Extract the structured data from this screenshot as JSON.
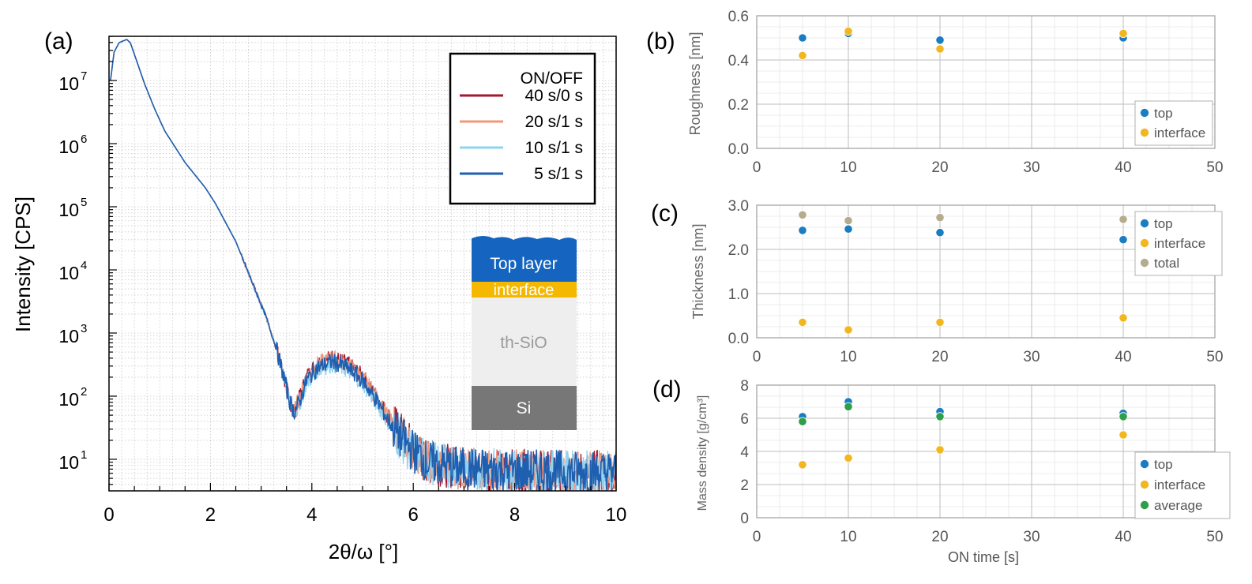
{
  "chart_data": [
    {
      "panel": "(a)",
      "type": "line",
      "xlabel": "2θ/ω [°]",
      "ylabel": "Intensity [CPS]",
      "xlim": [
        0,
        10
      ],
      "ylim_log10": [
        0.5,
        7.7
      ],
      "y_scale": "log",
      "x_ticks": [
        0,
        2,
        4,
        6,
        8,
        10
      ],
      "y_tick_labels": [
        {
          "base": "10",
          "exp": "7",
          "value": 10000000
        },
        {
          "base": "10",
          "exp": "6",
          "value": 1000000
        },
        {
          "base": "10",
          "exp": "5",
          "value": 100000
        },
        {
          "base": "10",
          "exp": "4",
          "value": 10000
        },
        {
          "base": "10",
          "exp": "3",
          "value": 1000
        },
        {
          "base": "10",
          "exp": "2",
          "value": 100
        },
        {
          "base": "10",
          "exp": "1",
          "value": 10
        }
      ],
      "legend_title": "ON/OFF",
      "legend_position": "top-right",
      "grid": true,
      "series": [
        {
          "name": "40 s/0 s",
          "color": "#a3182f",
          "peak_scale": 1.2
        },
        {
          "name": "20 s/1 s",
          "color": "#f0987a",
          "peak_scale": 1.15
        },
        {
          "name": "10 s/1 s",
          "color": "#8fd3f0",
          "peak_scale": 0.9
        },
        {
          "name": " 5 s/1 s",
          "color": "#1f5fb0",
          "peak_scale": 1.0
        }
      ],
      "curve_points": [
        [
          0.03,
          7.0
        ],
        [
          0.1,
          7.45
        ],
        [
          0.2,
          7.6
        ],
        [
          0.35,
          7.65
        ],
        [
          0.42,
          7.6
        ],
        [
          0.55,
          7.3
        ],
        [
          0.7,
          6.95
        ],
        [
          0.9,
          6.55
        ],
        [
          1.1,
          6.2
        ],
        [
          1.3,
          5.95
        ],
        [
          1.5,
          5.7
        ],
        [
          1.7,
          5.5
        ],
        [
          1.9,
          5.3
        ],
        [
          2.1,
          5.05
        ],
        [
          2.3,
          4.75
        ],
        [
          2.5,
          4.45
        ],
        [
          2.7,
          4.05
        ],
        [
          2.9,
          3.65
        ],
        [
          3.1,
          3.25
        ],
        [
          3.3,
          2.75
        ],
        [
          3.45,
          2.3
        ],
        [
          3.55,
          1.95
        ],
        [
          3.65,
          1.75
        ],
        [
          3.75,
          1.9
        ],
        [
          3.9,
          2.25
        ],
        [
          4.1,
          2.45
        ],
        [
          4.4,
          2.55
        ],
        [
          4.7,
          2.45
        ],
        [
          5.0,
          2.25
        ],
        [
          5.3,
          1.9
        ],
        [
          5.6,
          1.5
        ],
        [
          5.9,
          1.2
        ],
        [
          6.3,
          0.95
        ],
        [
          7.0,
          0.85
        ],
        [
          8.0,
          0.82
        ],
        [
          9.0,
          0.8
        ],
        [
          10.0,
          0.8
        ]
      ],
      "inset": {
        "layers": [
          {
            "label": "Top layer",
            "color": "#1565c0",
            "text_color": "#ffffff"
          },
          {
            "label": "interface",
            "color": "#f5b800",
            "text_color": "#ffffff"
          },
          {
            "label": "th-SiO",
            "color": "#eeeeee",
            "text_color": "#9a9a9a"
          },
          {
            "label": "Si",
            "color": "#777777",
            "text_color": "#ffffff"
          }
        ]
      }
    },
    {
      "panel": "(b)",
      "type": "scatter",
      "ylabel": "Roughness [nm]",
      "xlim": [
        0,
        50
      ],
      "ylim": [
        0,
        0.6
      ],
      "x_ticks": [
        0,
        10,
        20,
        30,
        40,
        50
      ],
      "x_tick_labels": [
        "0",
        "10",
        "20",
        "30",
        "40",
        "50"
      ],
      "y_ticks": [
        0,
        0.2,
        0.4,
        0.6
      ],
      "y_tick_labels": [
        "0.0",
        "0.2",
        "0.4",
        "0.6"
      ],
      "legend_position": "bottom-right",
      "grid": true,
      "series": [
        {
          "name": "top",
          "color": "#1a7dc2",
          "x": [
            5,
            10,
            20,
            40
          ],
          "y": [
            0.5,
            0.52,
            0.49,
            0.5
          ]
        },
        {
          "name": "interface",
          "color": "#f2b71f",
          "x": [
            5,
            10,
            20,
            40
          ],
          "y": [
            0.42,
            0.53,
            0.45,
            0.52
          ]
        }
      ]
    },
    {
      "panel": "(c)",
      "type": "scatter",
      "ylabel": "Thickness [nm]",
      "xlim": [
        0,
        50
      ],
      "ylim": [
        0,
        3
      ],
      "x_ticks": [
        0,
        10,
        20,
        30,
        40,
        50
      ],
      "x_tick_labels": [
        "0",
        "10",
        "20",
        "30",
        "40",
        "50"
      ],
      "y_ticks": [
        0,
        1,
        2,
        3
      ],
      "y_tick_labels": [
        "0.0",
        "1.0",
        "2.0",
        "3.0"
      ],
      "legend_position": "top-right",
      "grid": true,
      "series": [
        {
          "name": "top",
          "color": "#1a7dc2",
          "x": [
            5,
            10,
            20,
            40
          ],
          "y": [
            2.43,
            2.46,
            2.38,
            2.22
          ]
        },
        {
          "name": "interface",
          "color": "#f2b71f",
          "x": [
            5,
            10,
            20,
            40
          ],
          "y": [
            0.35,
            0.18,
            0.35,
            0.45
          ]
        },
        {
          "name": "total",
          "color": "#b5ac8e",
          "x": [
            5,
            10,
            20,
            40
          ],
          "y": [
            2.78,
            2.65,
            2.72,
            2.68
          ]
        }
      ]
    },
    {
      "panel": "(d)",
      "type": "scatter",
      "ylabel": "Mass density [g/cm³]",
      "xlabel": "ON time [s]",
      "xlim": [
        0,
        50
      ],
      "ylim": [
        0,
        8
      ],
      "x_ticks": [
        0,
        10,
        20,
        30,
        40,
        50
      ],
      "x_tick_labels": [
        "0",
        "10",
        "20",
        "30",
        "40",
        "50"
      ],
      "y_ticks": [
        0,
        2,
        4,
        6,
        8
      ],
      "y_tick_labels": [
        "0",
        "2",
        "4",
        "6",
        "8"
      ],
      "legend_position": "bottom-right",
      "grid": true,
      "series": [
        {
          "name": "top",
          "color": "#1a7dc2",
          "x": [
            5,
            10,
            20,
            40
          ],
          "y": [
            6.1,
            7.0,
            6.4,
            6.3
          ]
        },
        {
          "name": "interface",
          "color": "#f2b71f",
          "x": [
            5,
            10,
            20,
            40
          ],
          "y": [
            3.2,
            3.6,
            4.1,
            5.0
          ]
        },
        {
          "name": "average",
          "color": "#2e9e4a",
          "x": [
            5,
            10,
            20,
            40
          ],
          "y": [
            5.8,
            6.7,
            6.1,
            6.1
          ]
        }
      ]
    }
  ]
}
